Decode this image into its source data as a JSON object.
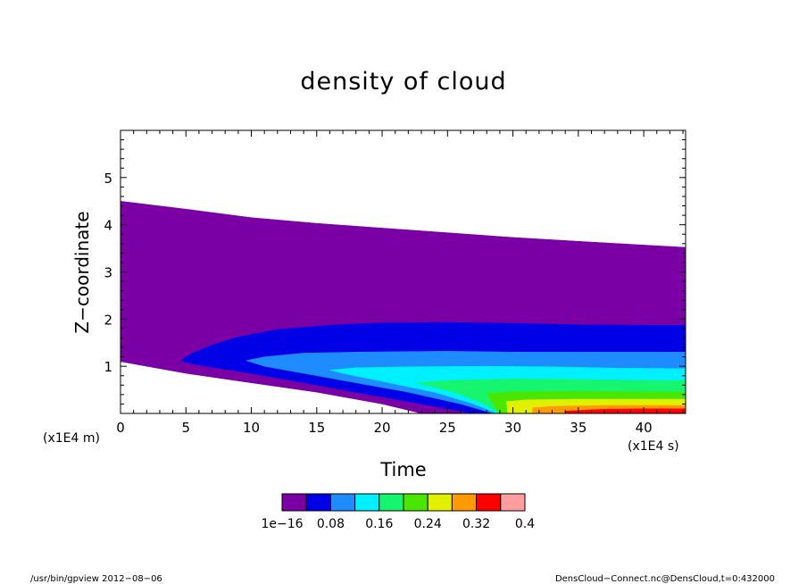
{
  "chart_data": {
    "type": "contour",
    "title": "density of cloud",
    "xlabel": "Time",
    "ylabel": "Z−coordinate",
    "x_unit": "(x1E4 s)",
    "y_unit": "(x1E4 m)",
    "xlim": [
      0,
      43.2
    ],
    "ylim": [
      0,
      6
    ],
    "x_ticks": [
      0,
      5,
      10,
      15,
      20,
      25,
      30,
      35,
      40
    ],
    "y_ticks": [
      1,
      2,
      3,
      4,
      5
    ],
    "levels": [
      1e-16,
      0.04,
      0.08,
      0.12,
      0.16,
      0.2,
      0.24,
      0.28,
      0.32,
      0.36,
      0.4
    ],
    "colorbar_labels": [
      "1e−16",
      "0.08",
      "0.16",
      "0.24",
      "0.32",
      "0.4"
    ],
    "colors": [
      "#7a00a6",
      "#0000e6",
      "#1e8cff",
      "#00f0ff",
      "#17f56e",
      "#4ae600",
      "#e0f000",
      "#ff9a00",
      "#ff0000",
      "#ff9e9e"
    ],
    "contours": [
      {
        "level": 1e-16,
        "color": "#7a00a6",
        "points": [
          [
            0,
            4.5
          ],
          [
            5,
            4.33
          ],
          [
            10,
            4.15
          ],
          [
            15,
            4.03
          ],
          [
            20,
            3.93
          ],
          [
            25,
            3.83
          ],
          [
            30,
            3.73
          ],
          [
            35,
            3.65
          ],
          [
            40,
            3.57
          ],
          [
            43.2,
            3.52
          ],
          [
            43.2,
            0
          ],
          [
            23,
            0
          ],
          [
            20,
            0.2
          ],
          [
            15,
            0.45
          ],
          [
            10,
            0.65
          ],
          [
            5,
            0.85
          ],
          [
            0,
            1.1
          ]
        ]
      },
      {
        "level": 0.04,
        "color": "#0000e6",
        "points": [
          [
            4.6,
            1.12
          ],
          [
            5.5,
            1.28
          ],
          [
            7,
            1.45
          ],
          [
            9,
            1.62
          ],
          [
            12,
            1.78
          ],
          [
            16,
            1.87
          ],
          [
            20,
            1.92
          ],
          [
            25,
            1.93
          ],
          [
            30,
            1.91
          ],
          [
            35,
            1.88
          ],
          [
            40,
            1.87
          ],
          [
            43.2,
            1.87
          ],
          [
            43.2,
            0
          ],
          [
            27,
            0
          ],
          [
            24,
            0.15
          ],
          [
            20,
            0.35
          ],
          [
            15,
            0.6
          ],
          [
            10,
            0.85
          ],
          [
            7,
            0.98
          ],
          [
            5.5,
            1.05
          ]
        ]
      },
      {
        "level": 0.08,
        "color": "#1e8cff",
        "points": [
          [
            9.6,
            1.12
          ],
          [
            11,
            1.2
          ],
          [
            14,
            1.28
          ],
          [
            18,
            1.3
          ],
          [
            25,
            1.32
          ],
          [
            30,
            1.3
          ],
          [
            35,
            1.3
          ],
          [
            43.2,
            1.3
          ],
          [
            43.2,
            0
          ],
          [
            28.5,
            0
          ],
          [
            26,
            0.2
          ],
          [
            22,
            0.45
          ],
          [
            18,
            0.65
          ],
          [
            14,
            0.85
          ],
          [
            11,
            1.0
          ]
        ]
      },
      {
        "level": 0.12,
        "color": "#00f0ff",
        "points": [
          [
            16,
            0.92
          ],
          [
            18,
            0.97
          ],
          [
            22,
            0.99
          ],
          [
            28,
            1.0
          ],
          [
            33,
            0.99
          ],
          [
            38,
            0.96
          ],
          [
            43.2,
            0.95
          ],
          [
            43.2,
            0
          ],
          [
            28.8,
            0
          ],
          [
            27,
            0.2
          ],
          [
            24,
            0.45
          ],
          [
            20,
            0.68
          ],
          [
            17,
            0.85
          ]
        ]
      },
      {
        "level": 0.16,
        "color": "#17f56e",
        "points": [
          [
            22.6,
            0.65
          ],
          [
            25,
            0.7
          ],
          [
            30,
            0.73
          ],
          [
            35,
            0.72
          ],
          [
            40,
            0.7
          ],
          [
            43.2,
            0.7
          ],
          [
            43.2,
            0
          ],
          [
            28.9,
            0
          ],
          [
            27.8,
            0.2
          ],
          [
            25.5,
            0.45
          ]
        ]
      },
      {
        "level": 0.2,
        "color": "#4ae600",
        "points": [
          [
            28,
            0.42
          ],
          [
            30,
            0.46
          ],
          [
            35,
            0.47
          ],
          [
            40,
            0.46
          ],
          [
            43.2,
            0.45
          ],
          [
            43.2,
            0
          ],
          [
            29,
            0
          ],
          [
            28.5,
            0.2
          ]
        ]
      },
      {
        "level": 0.24,
        "color": "#e0f000",
        "points": [
          [
            29.5,
            0.25
          ],
          [
            31,
            0.29
          ],
          [
            35,
            0.3
          ],
          [
            40,
            0.3
          ],
          [
            43.2,
            0.3
          ],
          [
            43.2,
            0
          ],
          [
            29.6,
            0
          ]
        ]
      },
      {
        "level": 0.28,
        "color": "#ff9a00",
        "points": [
          [
            31.5,
            0.12
          ],
          [
            33,
            0.15
          ],
          [
            37,
            0.17
          ],
          [
            43.2,
            0.17
          ],
          [
            43.2,
            0
          ],
          [
            31.5,
            0
          ]
        ]
      },
      {
        "level": 0.32,
        "color": "#ff0000",
        "points": [
          [
            34,
            0.05
          ],
          [
            37,
            0.09
          ],
          [
            40,
            0.1
          ],
          [
            43.2,
            0.1
          ],
          [
            43.2,
            0
          ],
          [
            34,
            0
          ]
        ]
      }
    ]
  },
  "footer": {
    "left": "/usr/bin/gpview   2012−08−06",
    "right": "DensCloud−Connect.nc@DensCloud,t=0:432000"
  }
}
